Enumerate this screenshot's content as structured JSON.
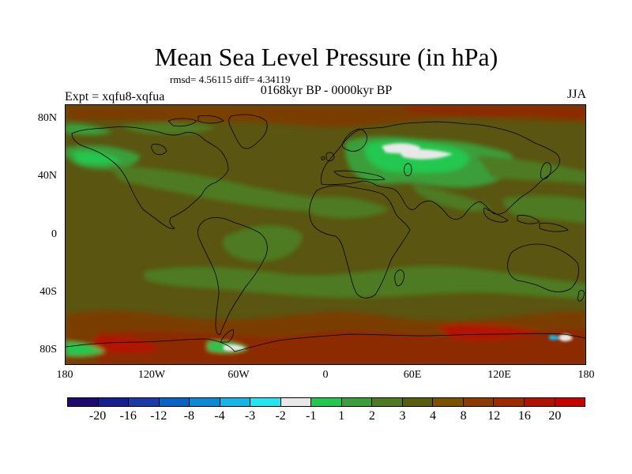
{
  "title": "Mean Sea Level Pressure (in hPa)",
  "stats": "rmsd= 4.56115 diff= 4.34119",
  "period": "0168kyr BP - 0000kyr BP",
  "experiment": "Expt = xqfu8-xqfua",
  "season": "JJA",
  "lat_labels": [
    "80N",
    "40N",
    "0",
    "40S",
    "80S"
  ],
  "lon_labels": [
    "180",
    "120W",
    "60W",
    "0",
    "60E",
    "120E",
    "180"
  ],
  "colorbar": {
    "colors": [
      "#1e0a6e",
      "#142090",
      "#1a3aa8",
      "#0a62c4",
      "#0a8ad6",
      "#14b6e6",
      "#22e6f0",
      "#e8e8e8",
      "#20c850",
      "#3a9e3a",
      "#4e7a22",
      "#5c5c0e",
      "#7a5200",
      "#8c3c00",
      "#9e2a00",
      "#b01400",
      "#c80000"
    ],
    "labels": [
      "-20",
      "-16",
      "-12",
      "-8",
      "-4",
      "-3",
      "-2",
      "-1",
      "1",
      "2",
      "3",
      "4",
      "8",
      "12",
      "16",
      "20"
    ]
  },
  "map": {
    "background_color": "#5a5510",
    "coastline_color": "#000000"
  }
}
